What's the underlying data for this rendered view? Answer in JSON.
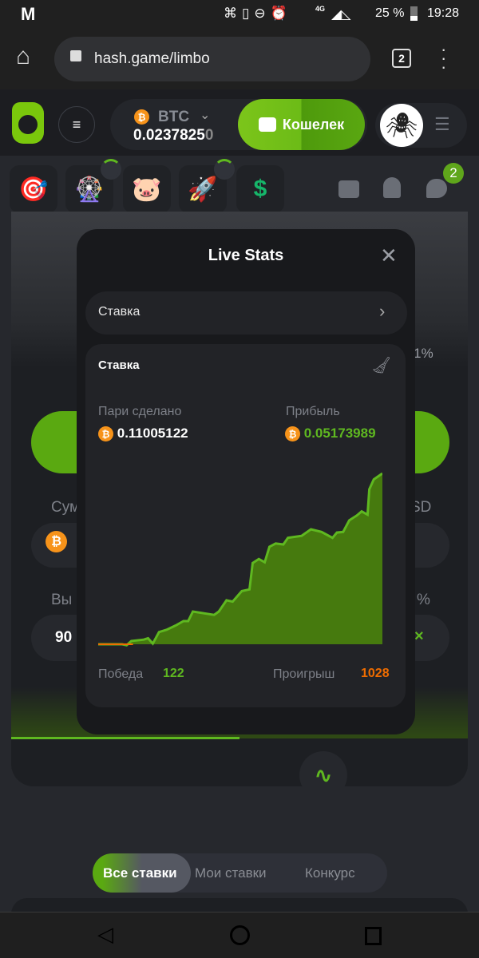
{
  "status_bar": {
    "carrier_icon": "M",
    "network": "4G",
    "battery": "25 %",
    "time": "19:28"
  },
  "browser": {
    "url": "hash.game/limbo",
    "tab_count": "2"
  },
  "header": {
    "currency": "BTC",
    "balance_main": "0.0237825",
    "balance_tail": "0",
    "wallet_label": "Кошелек",
    "notification_badge": "2"
  },
  "promo_icons": [
    "target-icon",
    "wheel-icon",
    "piggy-bank-icon",
    "rocket-icon",
    "price-tag-icon"
  ],
  "background_game": {
    "amount_label_partial": "Сум",
    "currency_partial": "SD",
    "payout_label_partial": "Вы",
    "percent": "%",
    "payout_value_partial": "90",
    "edge_partial": "а 1%"
  },
  "modal": {
    "title": "Live Stats",
    "selector_label": "Ставка",
    "card_title": "Ставка",
    "wagered_label": "Пари сделано",
    "wagered_value": "0.11005122",
    "profit_label": "Прибыль",
    "profit_value": "0.05173989",
    "wins_label": "Победа",
    "wins_value": "122",
    "losses_label": "Проигрыш",
    "losses_value": "1028"
  },
  "colors": {
    "accent": "#5fb820",
    "loss": "#ef6c00",
    "btc": "#f7931a"
  },
  "chart_data": {
    "type": "area",
    "title": "",
    "xlabel": "",
    "ylabel": "",
    "grid": false,
    "x": [
      0,
      97,
      115,
      134,
      184,
      202,
      221,
      246,
      277,
      314,
      345,
      364,
      383,
      469,
      488,
      519,
      544,
      581,
      612,
      625,
      650,
      674,
      693,
      718,
      749,
      768,
      823,
      861,
      904,
      948,
      966,
      991,
      1016,
      1047,
      1066,
      1090,
      1097,
      1115,
      1150
    ],
    "y": [
      0,
      0,
      -0.0003,
      0.001,
      0.0014,
      0.0018,
      0.0002,
      0.0037,
      0.0044,
      0.0057,
      0.007,
      0.007,
      0.0099,
      0.0089,
      0.0099,
      0.0133,
      0.0129,
      0.0161,
      0.0166,
      0.0246,
      0.0258,
      0.0248,
      0.0295,
      0.0305,
      0.0302,
      0.0322,
      0.0328,
      0.0348,
      0.034,
      0.0322,
      0.0338,
      0.034,
      0.0375,
      0.039,
      0.0402,
      0.0392,
      0.0469,
      0.0499,
      0.0517
    ],
    "xlim": [
      0,
      1150
    ],
    "ylim": [
      0,
      0.0517
    ]
  },
  "toolbar": [
    "music-off-icon",
    "sound-off-icon",
    "lightning-icon",
    "live-stats-icon",
    "acorn-icon",
    "help-icon"
  ],
  "tabs": {
    "all": "Все ставки",
    "mine": "Мои ставки",
    "contest": "Конкурс"
  }
}
